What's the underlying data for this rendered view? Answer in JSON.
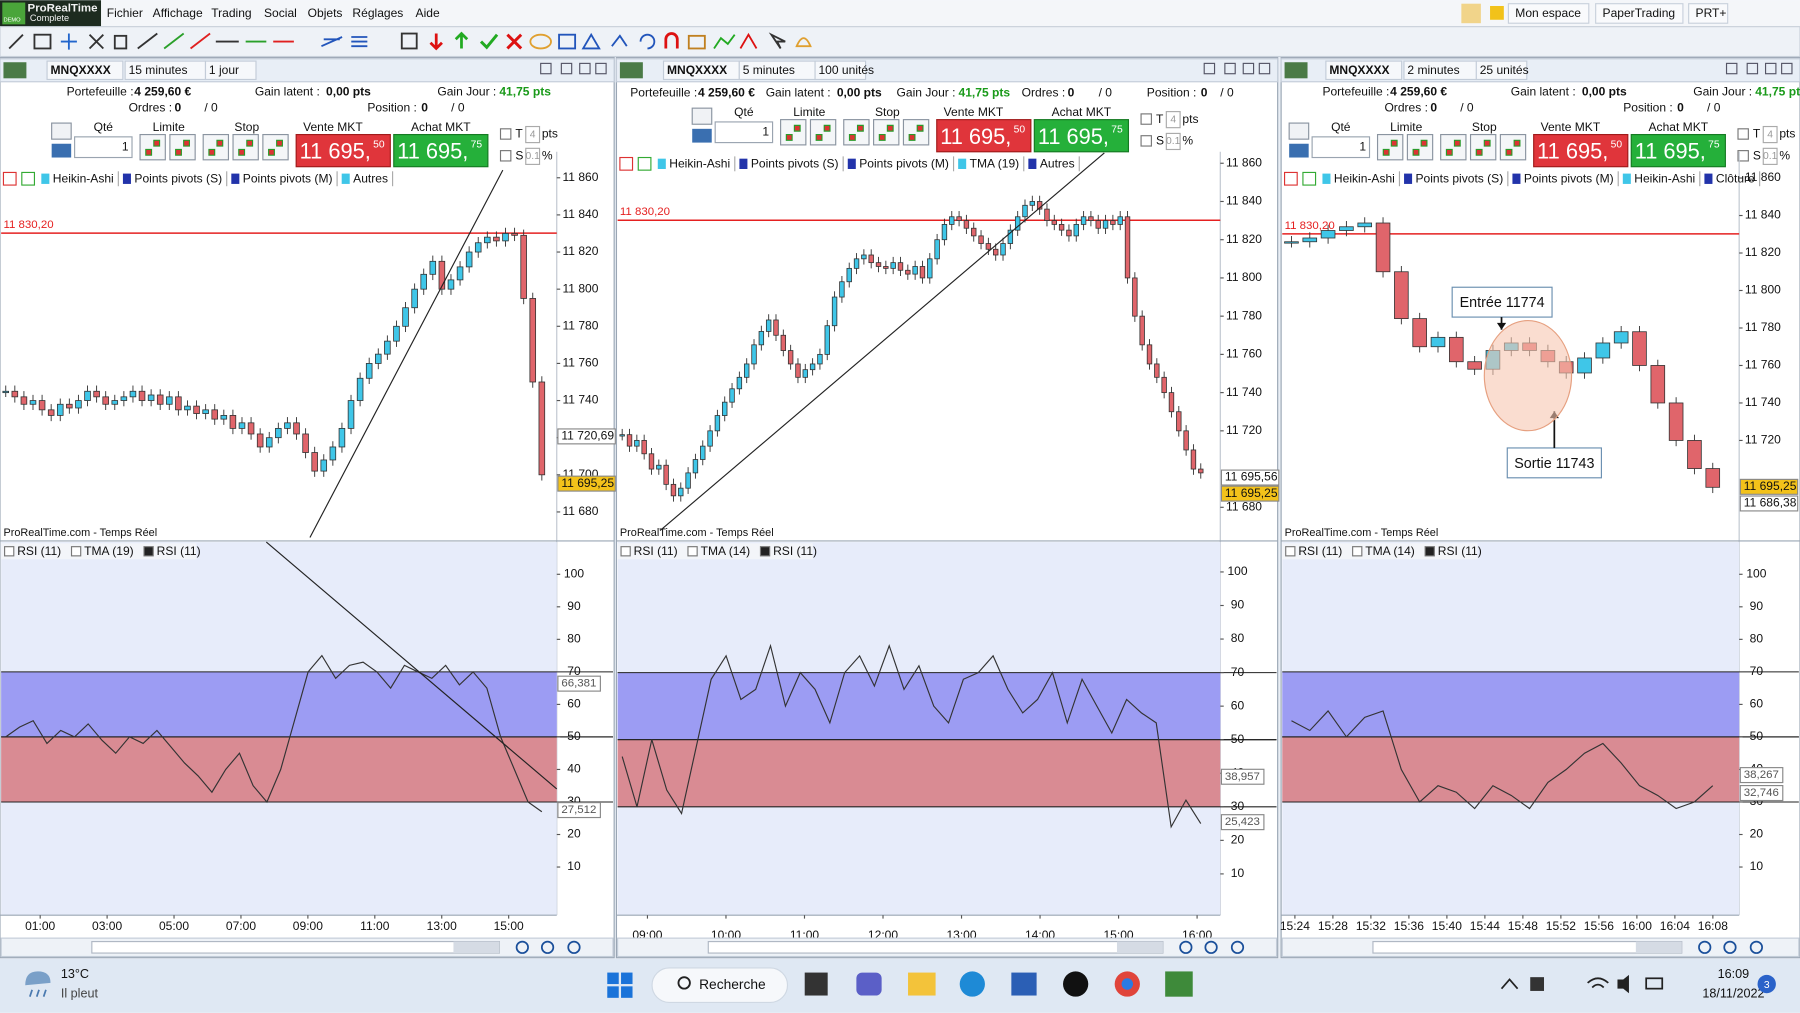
{
  "app": {
    "brand": "ProRealTime",
    "edition": "Complete",
    "demo": "DEMO",
    "menu": [
      "Fichier",
      "Affichage",
      "Trading",
      "Social",
      "Objets",
      "Réglages",
      "Aide"
    ],
    "right": [
      "Mon espace",
      "PaperTrading",
      "PRT+"
    ]
  },
  "colors": {
    "up": "#3fc6e8",
    "down": "#e0656b",
    "level": "#e52020",
    "current": "#f3c21a",
    "gain": "#1a9a1a",
    "sell": "#e0353b",
    "buy": "#25b03a"
  },
  "rsi_zones": [
    {
      "from": 50,
      "to": 70,
      "color": "#9c9cf3"
    },
    {
      "from": 30,
      "to": 50,
      "color": "#d98b93"
    }
  ],
  "panels": [
    {
      "symbol": "MNQXXXX",
      "timeframe": "15 minutes",
      "period": "1 jour",
      "info": {
        "portfolio_label": "Portefeuille :",
        "portfolio": "4 259,60 €",
        "latent_label": "Gain latent :",
        "latent": "0,00 pts",
        "day_label": "Gain Jour :",
        "day": "41,75 pts",
        "orders_label": "Ordres :",
        "orders": "0",
        "orders2": "/ 0",
        "position_label": "Position :",
        "position": "0",
        "position2": "/ 0"
      },
      "order": {
        "qty_label": "Qté",
        "qty": "1",
        "limit_label": "Limite",
        "stop_label": "Stop",
        "sell_label": "Vente MKT",
        "buy_label": "Achat MKT",
        "sell": "11 695,",
        "sell_dec": "50",
        "buy": "11 695,",
        "buy_dec": "75",
        "t_label": "T",
        "t": "4",
        "t_unit": "pts",
        "s_label": "S",
        "s": "0.1",
        "s_unit": "%"
      },
      "indicators": [
        "Heikin-Ashi",
        "Points pivots (S)",
        "Points pivots (M)",
        "Autres"
      ],
      "price_range": [
        11874,
        11665
      ],
      "price_ticks": [
        {
          "value": 11860,
          "label": "11 860"
        },
        {
          "value": 11840,
          "label": "11 840"
        },
        {
          "value": 11820,
          "label": "11 820"
        },
        {
          "value": 11800,
          "label": "11 800"
        },
        {
          "value": 11780,
          "label": "11 780"
        },
        {
          "value": 11760,
          "label": "11 760"
        },
        {
          "value": 11740,
          "label": "11 740"
        },
        {
          "value": 11720,
          "label": "11 720"
        },
        {
          "value": 11700,
          "label": "11 700"
        },
        {
          "value": 11680,
          "label": "11 680"
        }
      ],
      "level": {
        "value": 11830.2,
        "label": "11 830,20"
      },
      "tags": [
        {
          "value": 11720.69,
          "label": "11 720,69",
          "style": "box"
        },
        {
          "value": 11695.25,
          "label": "11 695,25",
          "style": "current"
        }
      ],
      "source": "ProRealTime.com - Temps Réel",
      "candles": [
        11745,
        11742,
        11738,
        11740,
        11735,
        11732,
        11738,
        11736,
        11740,
        11745,
        11742,
        11738,
        11740,
        11742,
        11745,
        11740,
        11743,
        11738,
        11742,
        11735,
        11737,
        11733,
        11735,
        11730,
        11732,
        11725,
        11728,
        11722,
        11715,
        11720,
        11725,
        11728,
        11722,
        11712,
        11702,
        11708,
        11715,
        11725,
        11740,
        11752,
        11760,
        11765,
        11772,
        11780,
        11790,
        11800,
        11808,
        11815,
        11800,
        11805,
        11812,
        11820,
        11825,
        11828,
        11826,
        11830,
        11829,
        11795,
        11750,
        11700
      ],
      "rsi_indicators": [
        "RSI (11)",
        "TMA (19)",
        "RSI (11)"
      ],
      "rsi_range": [
        109.9,
        -4.8
      ],
      "rsi_ticks": [
        100,
        90,
        80,
        70,
        60,
        50,
        40,
        30,
        20,
        10
      ],
      "rsi_tags": [
        {
          "value": 66.381,
          "label": "66,381"
        },
        {
          "value": 27.512,
          "label": "27,512"
        }
      ],
      "rsi": [
        50,
        53,
        55,
        48,
        52,
        50,
        54,
        49,
        45,
        50,
        48,
        52,
        47,
        42,
        38,
        33,
        40,
        45,
        35,
        30,
        40,
        55,
        70,
        75,
        68,
        72,
        73,
        70,
        65,
        72,
        70,
        68,
        72,
        66,
        70,
        65,
        50,
        40,
        30,
        27
      ],
      "time_ticks": [
        "01:00",
        "03:00",
        "05:00",
        "07:00",
        "09:00",
        "11:00",
        "13:00",
        "15:00"
      ]
    },
    {
      "symbol": "MNQXXXX",
      "timeframe": "5 minutes",
      "period": "100 unités",
      "info": {
        "portfolio_label": "Portefeuille :",
        "portfolio": "4 259,60 €",
        "latent_label": "Gain latent :",
        "latent": "0,00 pts",
        "day_label": "Gain Jour :",
        "day": "41,75 pts",
        "orders_label": "Ordres :",
        "orders": "0",
        "orders2": "/ 0",
        "position_label": "Position :",
        "position": "0",
        "position2": "/ 0"
      },
      "order": {
        "qty_label": "Qté",
        "qty": "1",
        "limit_label": "Limite",
        "stop_label": "Stop",
        "sell_label": "Vente MKT",
        "buy_label": "Achat MKT",
        "sell": "11 695,",
        "sell_dec": "50",
        "buy": "11 695,",
        "buy_dec": "75",
        "t_label": "T",
        "t": "4",
        "t_unit": "pts",
        "s_label": "S",
        "s": "0.1",
        "s_unit": "%"
      },
      "indicators": [
        "Heikin-Ashi",
        "Points pivots (S)",
        "Points pivots (M)",
        "TMA (19)",
        "Autres"
      ],
      "price_range": [
        11866,
        11663
      ],
      "price_ticks": [
        {
          "value": 11860,
          "label": "11 860"
        },
        {
          "value": 11840,
          "label": "11 840"
        },
        {
          "value": 11820,
          "label": "11 820"
        },
        {
          "value": 11800,
          "label": "11 800"
        },
        {
          "value": 11780,
          "label": "11 780"
        },
        {
          "value": 11760,
          "label": "11 760"
        },
        {
          "value": 11740,
          "label": "11 740"
        },
        {
          "value": 11720,
          "label": "11 720"
        },
        {
          "value": 11680,
          "label": "11 680"
        }
      ],
      "level": {
        "value": 11830.2,
        "label": "11 830,20"
      },
      "tags": [
        {
          "value": 11695.56,
          "label": "11 695,56",
          "style": "box"
        },
        {
          "value": 11695.25,
          "label": "11 695,25",
          "style": "current"
        }
      ],
      "source": "ProRealTime.com - Temps Réel",
      "candles": [
        11718,
        11712,
        11715,
        11708,
        11700,
        11702,
        11692,
        11686,
        11690,
        11698,
        11705,
        11712,
        11720,
        11728,
        11735,
        11742,
        11748,
        11755,
        11765,
        11772,
        11778,
        11770,
        11762,
        11755,
        11748,
        11752,
        11755,
        11760,
        11775,
        11790,
        11798,
        11805,
        11810,
        11812,
        11808,
        11806,
        11805,
        11808,
        11804,
        11802,
        11806,
        11800,
        11810,
        11820,
        11828,
        11832,
        11830,
        11826,
        11822,
        11818,
        11815,
        11812,
        11818,
        11825,
        11832,
        11838,
        11840,
        11836,
        11830,
        11828,
        11825,
        11822,
        11828,
        11832,
        11830,
        11826,
        11830,
        11828,
        11832,
        11800,
        11780,
        11765,
        11755,
        11748,
        11740,
        11730,
        11720,
        11710,
        11700,
        11698
      ],
      "rsi_indicators": [
        "RSI (11)",
        "TMA (14)",
        "RSI (11)"
      ],
      "rsi_range": [
        108.9,
        -2.3
      ],
      "rsi_ticks": [
        100,
        90,
        80,
        70,
        60,
        50,
        40,
        30,
        20,
        10
      ],
      "rsi_tags": [
        {
          "value": 38.957,
          "label": "38,957"
        },
        {
          "value": 25.423,
          "label": "25,423"
        }
      ],
      "rsi": [
        45,
        30,
        50,
        35,
        28,
        48,
        68,
        75,
        62,
        65,
        78,
        60,
        70,
        65,
        55,
        70,
        75,
        66,
        78,
        65,
        72,
        60,
        55,
        68,
        70,
        75,
        65,
        58,
        62,
        70,
        55,
        68,
        60,
        52,
        62,
        58,
        55,
        24,
        32,
        25
      ],
      "time_ticks": [
        "09:00",
        "10:00",
        "11:00",
        "12:00",
        "13:00",
        "14:00",
        "15:00",
        "16:00"
      ]
    },
    {
      "symbol": "MNQXXXX",
      "timeframe": "2 minutes",
      "period": "25 unités",
      "info": {
        "portfolio_label": "Portefeuille :",
        "portfolio": "4 259,60 €",
        "latent_label": "Gain latent :",
        "latent": "0,00 pts",
        "day_label": "Gain Jour :",
        "day": "41,75 pts",
        "orders_label": "Ordres :",
        "orders": "0",
        "orders2": "/ 0",
        "position_label": "Position :",
        "position": "0",
        "position2": "/ 0"
      },
      "order": {
        "qty_label": "Qté",
        "qty": "1",
        "limit_label": "Limite",
        "stop_label": "Stop",
        "sell_label": "Vente MKT",
        "buy_label": "Achat MKT",
        "sell": "11 695,",
        "sell_dec": "50",
        "buy": "11 695,",
        "buy_dec": "75",
        "t_label": "T",
        "t": "4",
        "t_unit": "pts",
        "s_label": "S",
        "s": "0.1",
        "s_unit": "%"
      },
      "indicators": [
        "Heikin-Ashi",
        "Points pivots (S)",
        "Points pivots (M)",
        "Heikin-Ashi",
        "Clôture"
      ],
      "price_range": [
        11874,
        11667
      ],
      "price_ticks": [
        {
          "value": 11860,
          "label": "11 860"
        },
        {
          "value": 11840,
          "label": "11 840"
        },
        {
          "value": 11820,
          "label": "11 820"
        },
        {
          "value": 11800,
          "label": "11 800"
        },
        {
          "value": 11780,
          "label": "11 780"
        },
        {
          "value": 11760,
          "label": "11 760"
        },
        {
          "value": 11740,
          "label": "11 740"
        },
        {
          "value": 11720,
          "label": "11 720"
        }
      ],
      "level": {
        "value": 11830.2,
        "label": "11 830,20"
      },
      "tags": [
        {
          "value": 11695.25,
          "label": "11 695,25",
          "style": "current"
        },
        {
          "value": 11686.38,
          "label": "11 686,38",
          "style": "box"
        }
      ],
      "source": "ProRealTime.com - Temps Réel",
      "candles": [
        11826,
        11828,
        11832,
        11834,
        11836,
        11810,
        11785,
        11770,
        11775,
        11762,
        11758,
        11768,
        11772,
        11768,
        11762,
        11756,
        11764,
        11772,
        11778,
        11760,
        11740,
        11720,
        11705,
        11695
      ],
      "annotations": [
        {
          "label": "Entrée 11774"
        },
        {
          "label": "Sortie 11743"
        }
      ],
      "rsi_indicators": [
        "RSI (11)",
        "TMA (14)",
        "RSI (11)"
      ],
      "rsi_range": [
        109.9,
        -4.8
      ],
      "rsi_ticks": [
        100,
        90,
        80,
        70,
        60,
        50,
        40,
        30,
        20,
        10
      ],
      "rsi_tags": [
        {
          "value": 38.267,
          "label": "38,267"
        },
        {
          "value": 32.746,
          "label": "32,746"
        }
      ],
      "rsi": [
        55,
        52,
        58,
        50,
        56,
        58,
        40,
        30,
        35,
        33,
        28,
        35,
        32,
        28,
        36,
        40,
        45,
        48,
        42,
        35,
        32,
        28,
        30,
        35
      ],
      "time_ticks": [
        "15:24",
        "15:28",
        "15:32",
        "15:36",
        "15:40",
        "15:44",
        "15:48",
        "15:52",
        "15:56",
        "16:00",
        "16:04",
        "16:08"
      ]
    }
  ],
  "taskbar": {
    "temp": "13°C",
    "weather": "Il pleut",
    "search": "Recherche",
    "time": "16:09",
    "date": "18/11/2022",
    "badge": "3"
  }
}
